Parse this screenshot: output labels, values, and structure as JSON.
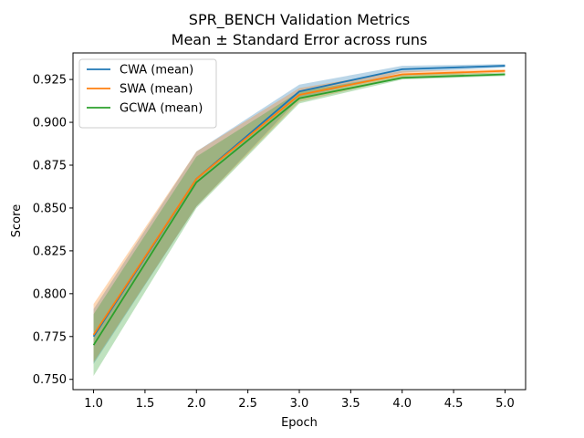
{
  "chart_data": {
    "type": "line",
    "title": "SPR_BENCH Validation Metrics",
    "subtitle": "Mean ± Standard Error across runs",
    "xlabel": "Epoch",
    "ylabel": "Score",
    "xlim": [
      0.8,
      5.2
    ],
    "ylim": [
      0.744,
      0.9405
    ],
    "x": [
      1,
      2,
      3,
      4,
      5
    ],
    "xticks": [
      1.0,
      1.5,
      2.0,
      2.5,
      3.0,
      3.5,
      4.0,
      4.5,
      5.0
    ],
    "xtick_labels": [
      "1.0",
      "1.5",
      "2.0",
      "2.5",
      "3.0",
      "3.5",
      "4.0",
      "4.5",
      "5.0"
    ],
    "yticks": [
      0.75,
      0.775,
      0.8,
      0.825,
      0.85,
      0.875,
      0.9,
      0.925
    ],
    "ytick_labels": [
      "0.750",
      "0.775",
      "0.800",
      "0.825",
      "0.850",
      "0.875",
      "0.900",
      "0.925"
    ],
    "grid": false,
    "legend": "top-left",
    "series": [
      {
        "name": "CWA (mean)",
        "color": "#1f77b4",
        "values": [
          0.775,
          0.867,
          0.918,
          0.931,
          0.933
        ],
        "lower": [
          0.759,
          0.851,
          0.914,
          0.929,
          0.932
        ],
        "upper": [
          0.791,
          0.883,
          0.922,
          0.933,
          0.934
        ]
      },
      {
        "name": "SWA (mean)",
        "color": "#ff7f0e",
        "values": [
          0.776,
          0.867,
          0.916,
          0.928,
          0.93
        ],
        "lower": [
          0.76,
          0.851,
          0.912,
          0.926,
          0.929
        ],
        "upper": [
          0.794,
          0.883,
          0.92,
          0.93,
          0.931
        ]
      },
      {
        "name": "GCWA (mean)",
        "color": "#2ca02c",
        "values": [
          0.77,
          0.865,
          0.914,
          0.926,
          0.928
        ],
        "lower": [
          0.752,
          0.85,
          0.911,
          0.925,
          0.927
        ],
        "upper": [
          0.788,
          0.88,
          0.918,
          0.928,
          0.929
        ]
      }
    ]
  }
}
